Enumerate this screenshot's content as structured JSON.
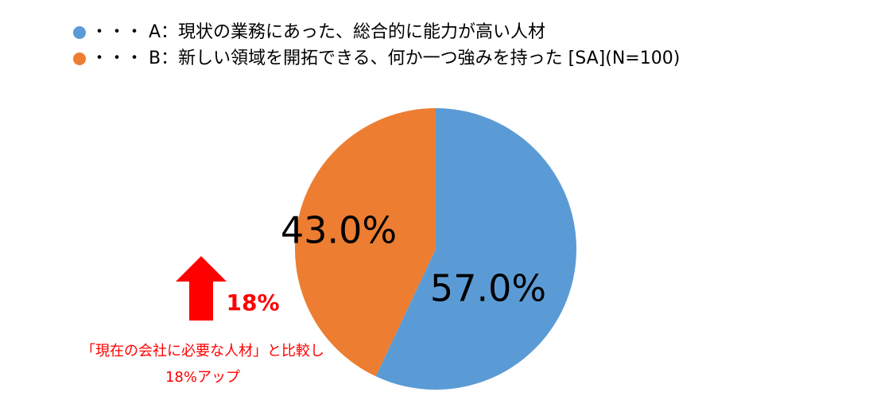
{
  "chart_data": {
    "type": "pie",
    "categories": [
      "・・・ A：現状の業務にあった、総合的に能力が高い人材",
      "・・・ B：新しい領域を開拓できる、何か一つ強みを持った [SA](N=100)"
    ],
    "values": [
      57.0,
      43.0
    ],
    "value_labels": [
      "57.0%",
      "43.0%"
    ],
    "colors": [
      "#5b9bd5",
      "#ed7d31"
    ],
    "annotations": [
      "18%",
      "「現在の会社に必要な人材」と比較し",
      "18%アップ"
    ]
  }
}
